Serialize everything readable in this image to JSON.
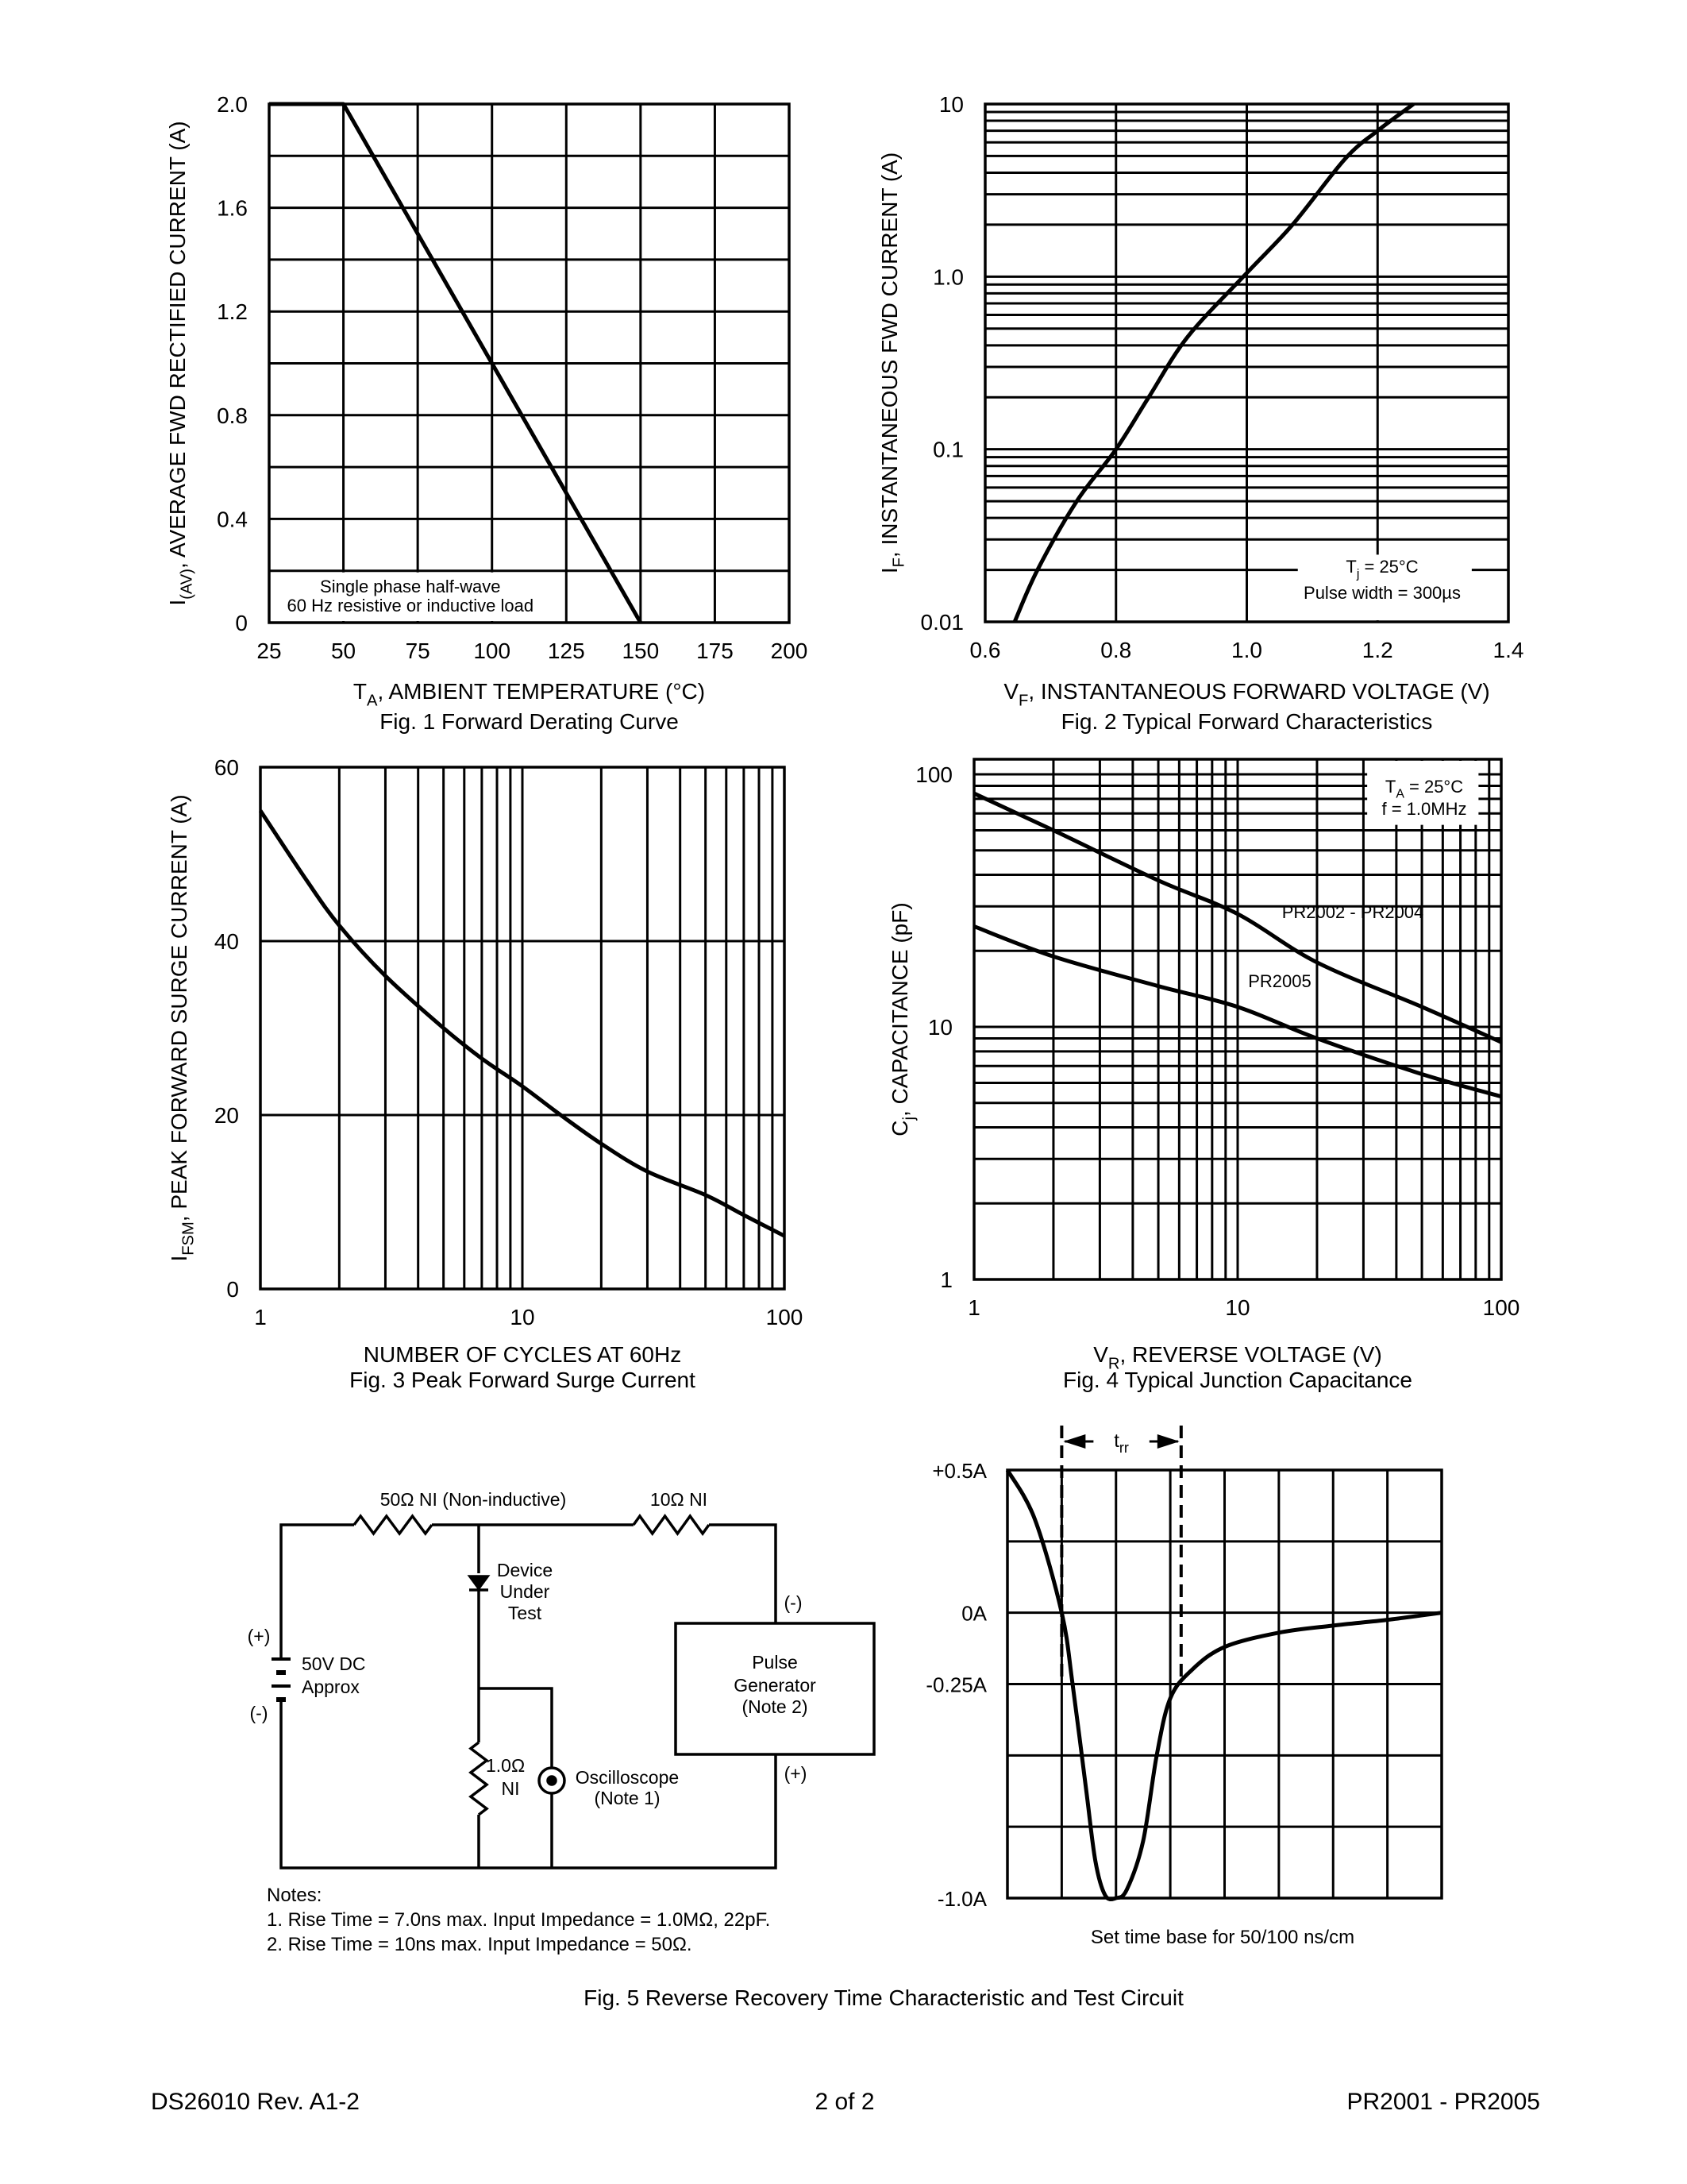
{
  "colors": {
    "ink": "#000000",
    "paper": "#ffffff"
  },
  "footer": {
    "left": "DS26010 Rev. A1-2",
    "center": "2 of 2",
    "right": "PR2001 - PR2005"
  },
  "chart_data": [
    {
      "id": "fig1",
      "type": "line",
      "caption": "Fig. 1  Forward Derating Curve",
      "xlabel": {
        "main": "T",
        "sub": "A",
        "rest": ", AMBIENT TEMPERATURE (°C)"
      },
      "ylabel": {
        "main": "I",
        "sub": "(AV)",
        "rest": ", AVERAGE FWD RECTIFIED CURRENT (A)"
      },
      "xscale": "linear",
      "yscale": "linear",
      "xlim": [
        25,
        200
      ],
      "ylim": [
        0,
        2.0
      ],
      "xticks": [
        "25",
        "50",
        "75",
        "100",
        "125",
        "150",
        "175",
        "200"
      ],
      "yticks": [
        "0",
        "0.4",
        "0.8",
        "1.2",
        "1.6",
        "2.0"
      ],
      "grid": {
        "x_step": 25,
        "y_step": 0.2
      },
      "annotation": [
        "Single phase half-wave",
        "60 Hz resistive or inductive load"
      ],
      "series": [
        {
          "x": [
            25,
            50,
            150
          ],
          "y": [
            2.0,
            2.0,
            0
          ]
        }
      ]
    },
    {
      "id": "fig2",
      "type": "line",
      "caption": "Fig. 2  Typical Forward Characteristics",
      "xlabel": {
        "main": "V",
        "sub": "F",
        "rest": ", INSTANTANEOUS FORWARD VOLTAGE (V)"
      },
      "ylabel": {
        "main": "I",
        "sub": "F",
        "rest": ", INSTANTANEOUS FWD CURRENT (A)"
      },
      "xscale": "linear",
      "yscale": "log",
      "xlim": [
        0.6,
        1.4
      ],
      "ylim": [
        0.01,
        10
      ],
      "xticks": [
        "0.6",
        "0.8",
        "1.0",
        "1.2",
        "1.4"
      ],
      "yticks": [
        "0.01",
        "0.1",
        "1.0",
        "10"
      ],
      "grid": {
        "x_step": 0.2,
        "y_minor": true
      },
      "annotation": {
        "line1": {
          "main": "T",
          "sub": "j",
          "rest": " = 25°C"
        },
        "line2": "Pulse width = 300µs"
      },
      "series": [
        {
          "x": [
            0.645,
            0.68,
            0.74,
            0.8,
            0.85,
            0.91,
            1.0,
            1.07,
            1.15,
            1.2,
            1.255
          ],
          "y": [
            0.01,
            0.02,
            0.05,
            0.1,
            0.2,
            0.45,
            1.05,
            2.0,
            4.8,
            7.0,
            10
          ]
        }
      ]
    },
    {
      "id": "fig3",
      "type": "line",
      "caption": "Fig. 3  Peak Forward Surge Current",
      "xlabel": {
        "main": "NUMBER OF CYCLES AT 60Hz",
        "sub": "",
        "rest": ""
      },
      "ylabel": {
        "main": "I",
        "sub": "FSM",
        "rest": ", PEAK FORWARD SURGE CURRENT (A)"
      },
      "xscale": "log",
      "yscale": "linear",
      "xlim": [
        1,
        100
      ],
      "ylim": [
        0,
        60
      ],
      "xticks": [
        "1",
        "10",
        "100"
      ],
      "yticks": [
        "0",
        "20",
        "40",
        "60"
      ],
      "grid": {
        "x_minor": true,
        "y_step": 20
      },
      "series": [
        {
          "x": [
            1,
            1.5,
            2,
            3,
            5,
            7,
            10,
            14,
            20,
            30,
            50,
            70,
            100
          ],
          "y": [
            55,
            47,
            41.8,
            36,
            30,
            26.5,
            23.3,
            20,
            16.7,
            13.5,
            10.8,
            8.5,
            6.1
          ]
        }
      ]
    },
    {
      "id": "fig4",
      "type": "line",
      "caption": "Fig. 4  Typical Junction Capacitance",
      "xlabel": {
        "main": "V",
        "sub": "R",
        "rest": ", REVERSE VOLTAGE (V)"
      },
      "ylabel": {
        "main": "C",
        "sub": "j",
        "rest": ", CAPACITANCE (pF)"
      },
      "xscale": "log",
      "yscale": "log",
      "xlim": [
        1,
        100
      ],
      "ylim": [
        1,
        100
      ],
      "xticks": [
        "1",
        "10",
        "100"
      ],
      "yticks": [
        "1",
        "10",
        "100"
      ],
      "grid": {
        "x_minor": true,
        "y_minor": true
      },
      "annotation": {
        "line1": {
          "main": "T",
          "sub": "A",
          "rest": " = 25°C"
        },
        "line2": "f = 1.0MHz"
      },
      "series": [
        {
          "name": "PR2002 - PR2004",
          "x": [
            1,
            2,
            5,
            10,
            20,
            50,
            100
          ],
          "y": [
            84,
            60,
            38,
            28,
            18,
            12,
            8.7
          ]
        },
        {
          "name": "PR2005",
          "x": [
            1,
            2,
            5,
            10,
            20,
            50,
            100
          ],
          "y": [
            25,
            19,
            14.5,
            12,
            9,
            6.5,
            5.3
          ]
        }
      ]
    },
    {
      "id": "fig5",
      "type": "line",
      "caption": "Fig. 5  Reverse Recovery Time Characteristic and Test Circuit",
      "xlabel": "Set time base for 50/100 ns/cm",
      "x_unit": "cm (divisions)",
      "xlim": [
        0,
        8
      ],
      "ylim": [
        -1.0,
        0.5
      ],
      "yticks": [
        {
          "value": 0.5,
          "label": "+0.5A"
        },
        {
          "value": 0,
          "label": "0A"
        },
        {
          "value": -0.25,
          "label": "-0.25A"
        },
        {
          "value": -1.0,
          "label": "-1.0A"
        }
      ],
      "grid": {
        "x_step": 1,
        "y_step": 0.25
      },
      "trr": {
        "label_main": "t",
        "label_sub": "rr",
        "start": 1.0,
        "end": 3.2
      },
      "series": [
        {
          "x": [
            0,
            0.5,
            1.0,
            1.2,
            1.45,
            1.62,
            1.8,
            2.0,
            2.2,
            2.5,
            2.75,
            3.0,
            3.4,
            4.0,
            5.0,
            6.0,
            7.0,
            8.0
          ],
          "y": [
            0.5,
            0.33,
            0,
            -0.25,
            -0.62,
            -0.87,
            -0.99,
            -1.0,
            -0.97,
            -0.8,
            -0.5,
            -0.3,
            -0.2,
            -0.12,
            -0.07,
            -0.045,
            -0.025,
            0
          ]
        }
      ]
    }
  ],
  "circuit": {
    "r1_label": "50Ω NI (Non-inductive)",
    "r2_label": "10Ω NI",
    "dut_label": [
      "Device",
      "Under",
      "Test"
    ],
    "battery_plus": "(+)",
    "battery_minus": "(-)",
    "battery_label": [
      "50V DC",
      "Approx"
    ],
    "r3_label": [
      "1.0Ω",
      "NI"
    ],
    "scope_label": [
      "Oscilloscope",
      "(Note 1)"
    ],
    "pulse_label": [
      "Pulse",
      "Generator",
      "(Note 2)"
    ],
    "pulse_minus": "(-)",
    "pulse_plus": "(+)",
    "notes": [
      "Notes:",
      "1. Rise Time = 7.0ns max. Input Impedance = 1.0MΩ, 22pF.",
      "2. Rise Time = 10ns max. Input Impedance = 50Ω."
    ]
  }
}
